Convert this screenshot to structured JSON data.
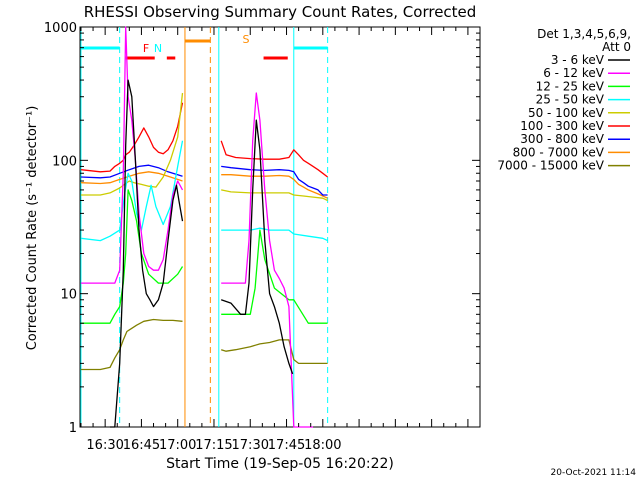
{
  "chart_data": {
    "type": "line",
    "title": "RHESSI Observing Summary Count Rates, Corrected",
    "xlabel": "Start Time (19-Sep-05 16:20:22)",
    "ylabel": "Corrected Count Rate (s⁻¹ detector⁻¹)",
    "yscale": "log",
    "ylim": [
      1,
      1000
    ],
    "xlim_minutes": [
      -0.4,
      165
    ],
    "x_ticks": [
      {
        "t": 10,
        "label": "16:30"
      },
      {
        "t": 25,
        "label": "16:45"
      },
      {
        "t": 40,
        "label": "17:00"
      },
      {
        "t": 55,
        "label": "17:15"
      },
      {
        "t": 70,
        "label": "17:30"
      },
      {
        "t": 85,
        "label": "17:45"
      },
      {
        "t": 100,
        "label": "18:00"
      }
    ],
    "y_ticks": [
      {
        "v": 1,
        "label": "1"
      },
      {
        "v": 10,
        "label": "10"
      },
      {
        "v": 100,
        "label": "100"
      },
      {
        "v": 1000,
        "label": "1000"
      }
    ],
    "legend_header": [
      "Det 1,3,4,5,6,9,",
      "Att 0"
    ],
    "flag_labels": {
      "night": "N",
      "flare": "F",
      "saa": "S"
    },
    "timestamp": "20-Oct-2021 11:14",
    "gap": [
      43,
      57
    ],
    "flare_flags": [
      [
        18.5,
        30.5
      ],
      [
        35.5,
        39
      ],
      [
        75.5,
        85.5
      ]
    ],
    "saa_flags": [
      [
        43,
        53.5
      ]
    ],
    "night_flags": [
      [
        0,
        16
      ],
      [
        88,
        102
      ]
    ],
    "verticals": [
      {
        "t": 0,
        "color": "#00ffff",
        "dash": false
      },
      {
        "t": 16,
        "color": "#00ffff",
        "dash": true
      },
      {
        "t": 43,
        "color": "#ff8c00",
        "dash": false
      },
      {
        "t": 53.5,
        "color": "#ff8c00",
        "dash": true
      },
      {
        "t": 57,
        "color": "#00ffff",
        "dash": false
      },
      {
        "t": 88,
        "color": "#00ffff",
        "dash": false
      },
      {
        "t": 102,
        "color": "#00ffff",
        "dash": true
      }
    ],
    "series": [
      {
        "name": "3 - 6 keV",
        "color": "#000000",
        "x": [
          12,
          14,
          16,
          17.5,
          18.5,
          19.5,
          21,
          22.5,
          24,
          25.5,
          27,
          28.5,
          30,
          32,
          34,
          36,
          38,
          39.5,
          40.5,
          42,
          58,
          62,
          66,
          68,
          69.5,
          71,
          72.5,
          74,
          76,
          78,
          80,
          82,
          84,
          86,
          87.5
        ],
        "y": [
          1,
          1,
          3,
          15,
          130,
          400,
          300,
          100,
          30,
          15,
          10,
          9,
          8,
          9,
          12,
          25,
          50,
          65,
          50,
          35,
          9,
          8.5,
          7,
          7,
          12,
          60,
          200,
          120,
          25,
          10,
          8,
          6,
          4,
          3,
          2.5
        ]
      },
      {
        "name": "6 - 12 keV",
        "color": "#ff00ff",
        "x": [
          0,
          4,
          8,
          12,
          14,
          16,
          17.5,
          18.5,
          19.5,
          21,
          22.5,
          24,
          26,
          28,
          30,
          32,
          34,
          36,
          38,
          40,
          42,
          58,
          62,
          66,
          68,
          69.5,
          71,
          72.5,
          74,
          76,
          78,
          80,
          82,
          84,
          86,
          88,
          90,
          92,
          94,
          96
        ],
        "y": [
          12,
          12,
          12,
          12,
          12,
          15,
          80,
          1000,
          300,
          200,
          100,
          40,
          20,
          16,
          15,
          15,
          18,
          30,
          55,
          70,
          60,
          12,
          12,
          12,
          12,
          25,
          140,
          320,
          200,
          60,
          25,
          15,
          13,
          11,
          8,
          1,
          1,
          1,
          1,
          1
        ]
      },
      {
        "name": "12 - 25 keV",
        "color": "#00ff00",
        "x": [
          0,
          8,
          12,
          14,
          16,
          17.5,
          18.5,
          19.5,
          21,
          23,
          25,
          28,
          32,
          36,
          40,
          42,
          58,
          64,
          70,
          72,
          74,
          76,
          80,
          86,
          88,
          94,
          100,
          102
        ],
        "y": [
          6,
          6,
          6,
          7,
          8,
          12,
          20,
          60,
          50,
          35,
          20,
          14,
          12,
          12,
          14,
          16,
          7,
          7,
          7,
          11,
          30,
          18,
          11,
          9,
          9,
          6,
          6,
          6
        ]
      },
      {
        "name": "25 - 50 keV",
        "color": "#00ffff",
        "x": [
          0,
          8,
          12,
          16,
          18,
          19.5,
          21,
          23,
          25,
          27,
          29,
          31,
          34,
          37,
          40,
          42,
          58,
          64,
          70,
          74,
          78,
          82,
          86,
          88,
          94,
          100,
          102
        ],
        "y": [
          26,
          25,
          27,
          30,
          55,
          80,
          70,
          40,
          30,
          45,
          65,
          45,
          33,
          45,
          90,
          140,
          30,
          30,
          30,
          31,
          30,
          30,
          30,
          28,
          27,
          26,
          25
        ]
      },
      {
        "name": "50 - 100 keV",
        "color": "#cccc00",
        "x": [
          0,
          8,
          12,
          16,
          18,
          20,
          22,
          25,
          28,
          31,
          34,
          37,
          40,
          42,
          58,
          62,
          70,
          76,
          82,
          86,
          88,
          92,
          96,
          100,
          102
        ],
        "y": [
          55,
          55,
          57,
          62,
          66,
          70,
          68,
          66,
          64,
          63,
          75,
          100,
          150,
          320,
          60,
          58,
          57,
          57,
          57,
          57,
          55,
          54,
          53,
          52,
          50
        ]
      },
      {
        "name": "100 - 300 keV",
        "color": "#ff0000",
        "x": [
          0,
          8,
          12,
          14,
          16,
          17.5,
          18.5,
          20,
          22,
          24,
          26,
          28,
          30,
          32,
          34,
          36,
          38,
          40,
          42,
          58,
          60,
          64,
          70,
          76,
          82,
          86,
          88,
          90,
          92,
          94,
          96,
          98,
          100,
          102
        ],
        "y": [
          85,
          82,
          83,
          90,
          95,
          100,
          110,
          115,
          130,
          150,
          175,
          150,
          125,
          115,
          112,
          120,
          140,
          180,
          270,
          140,
          110,
          105,
          103,
          102,
          102,
          105,
          120,
          110,
          100,
          95,
          90,
          85,
          80,
          75
        ]
      },
      {
        "name": "300 - 800 keV",
        "color": "#0000ff",
        "x": [
          0,
          8,
          12,
          16,
          20,
          24,
          28,
          32,
          36,
          40,
          42,
          58,
          62,
          70,
          76,
          82,
          86,
          88,
          90,
          92,
          94,
          96,
          98,
          100,
          102
        ],
        "y": [
          75,
          74,
          75,
          80,
          85,
          90,
          92,
          88,
          82,
          78,
          76,
          90,
          88,
          85,
          84,
          85,
          84,
          82,
          72,
          68,
          64,
          62,
          60,
          55,
          55
        ]
      },
      {
        "name": "800 - 7000 keV",
        "color": "#ff8c00",
        "x": [
          0,
          8,
          12,
          16,
          20,
          24,
          28,
          32,
          36,
          40,
          42,
          58,
          62,
          70,
          76,
          82,
          86,
          88,
          90,
          92,
          94,
          96,
          98,
          100,
          102
        ],
        "y": [
          68,
          67,
          68,
          72,
          76,
          80,
          82,
          80,
          76,
          72,
          70,
          78,
          78,
          76,
          76,
          77,
          76,
          72,
          66,
          63,
          60,
          58,
          56,
          54,
          52
        ]
      },
      {
        "name": "7000 - 15000 keV",
        "color": "#808000",
        "x": [
          0,
          8,
          12,
          14,
          16,
          17.5,
          19,
          21,
          23,
          26,
          30,
          34,
          38,
          42,
          58,
          60,
          64,
          70,
          74,
          78,
          82,
          86,
          88,
          90,
          94,
          98,
          102
        ],
        "y": [
          2.7,
          2.7,
          2.8,
          3.3,
          3.8,
          4.5,
          5.2,
          5.5,
          5.8,
          6.2,
          6.4,
          6.3,
          6.3,
          6.2,
          3.8,
          3.7,
          3.8,
          4,
          4.2,
          4.3,
          4.5,
          4.5,
          3.2,
          3,
          3,
          3,
          3
        ]
      }
    ]
  }
}
